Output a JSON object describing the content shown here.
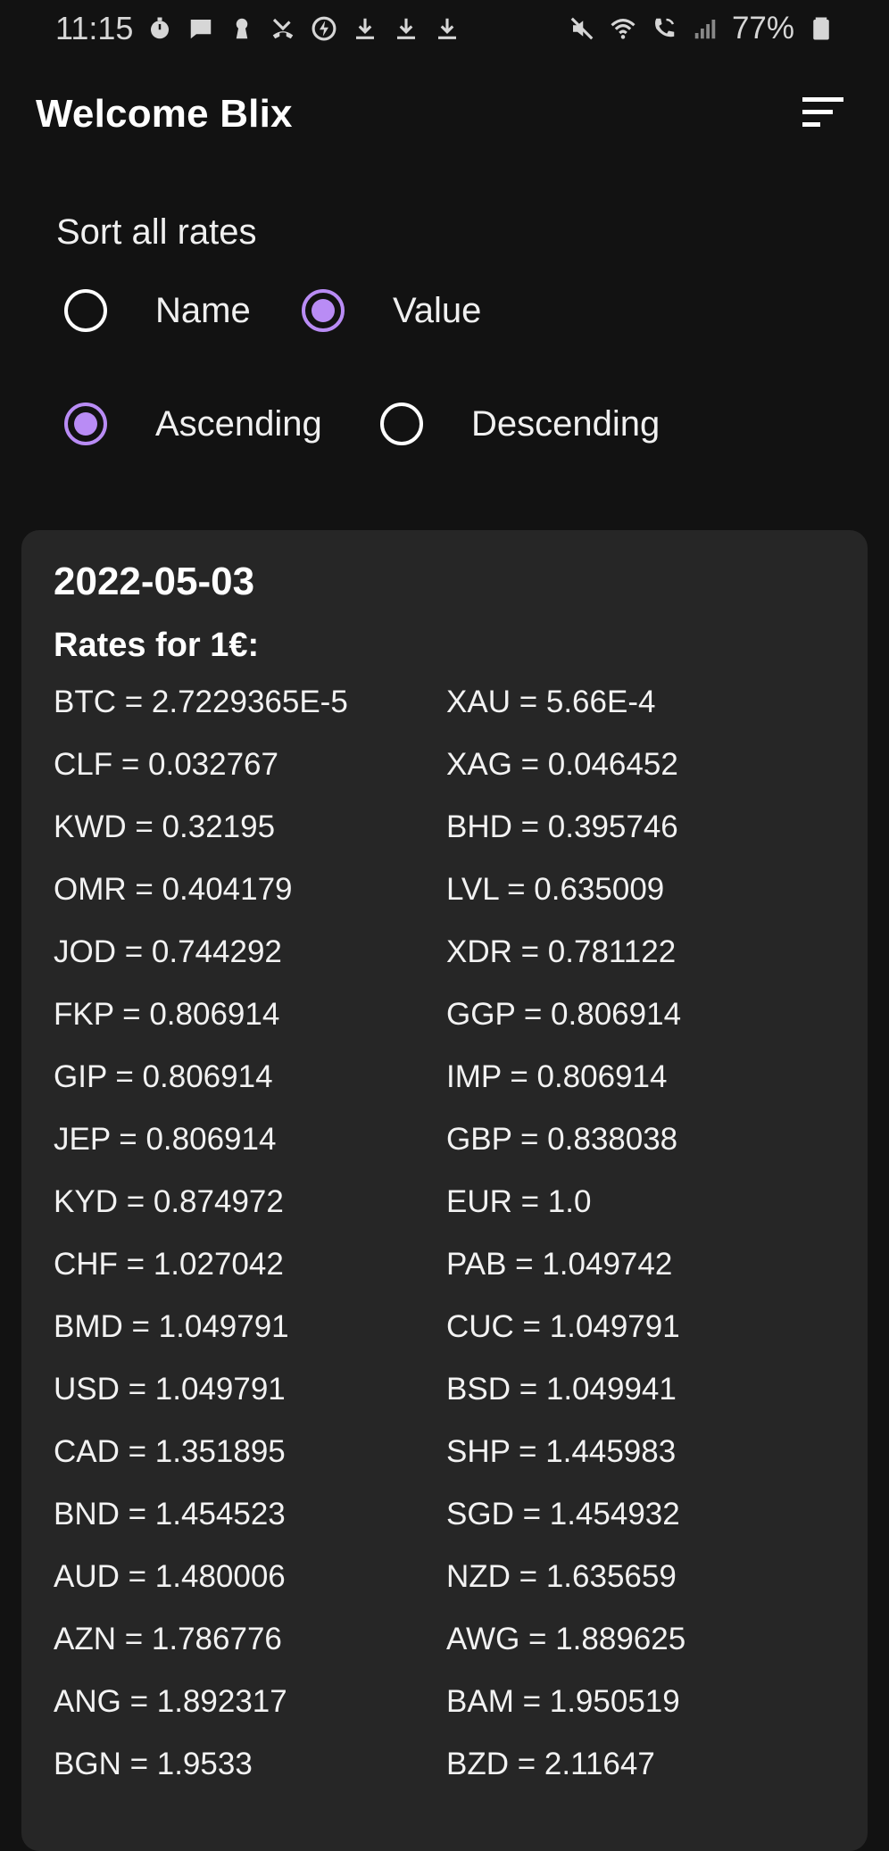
{
  "status_bar": {
    "time": "11:15",
    "battery": "77%",
    "left_icons": [
      "timer-icon",
      "message-icon",
      "keyhole-icon",
      "missed-call-icon",
      "lightning-icon",
      "download-icon",
      "download-icon",
      "download-icon"
    ],
    "right_icons": [
      "mute-icon",
      "wifi-call-icon",
      "wifi-calling-icon",
      "signal-icon",
      "battery-icon"
    ]
  },
  "app_bar": {
    "title": "Welcome Blix",
    "sort_icon": "sort-icon"
  },
  "sort": {
    "label": "Sort all rates",
    "by_options": [
      {
        "label": "Name",
        "selected": false
      },
      {
        "label": "Value",
        "selected": true
      }
    ],
    "order_options": [
      {
        "label": "Ascending",
        "selected": true
      },
      {
        "label": "Descending",
        "selected": false
      }
    ]
  },
  "card": {
    "date": "2022-05-03",
    "subtitle": "Rates for 1€:",
    "rates": [
      [
        "BTC = 2.7229365E-5",
        "XAU = 5.66E-4"
      ],
      [
        "CLF = 0.032767",
        "XAG = 0.046452"
      ],
      [
        "KWD = 0.32195",
        "BHD = 0.395746"
      ],
      [
        "OMR = 0.404179",
        "LVL = 0.635009"
      ],
      [
        "JOD = 0.744292",
        "XDR = 0.781122"
      ],
      [
        "FKP = 0.806914",
        "GGP = 0.806914"
      ],
      [
        "GIP = 0.806914",
        "IMP = 0.806914"
      ],
      [
        "JEP = 0.806914",
        "GBP = 0.838038"
      ],
      [
        "KYD = 0.874972",
        "EUR = 1.0"
      ],
      [
        "CHF = 1.027042",
        "PAB = 1.049742"
      ],
      [
        "BMD = 1.049791",
        "CUC = 1.049791"
      ],
      [
        "USD = 1.049791",
        "BSD = 1.049941"
      ],
      [
        "CAD = 1.351895",
        "SHP = 1.445983"
      ],
      [
        "BND = 1.454523",
        "SGD = 1.454932"
      ],
      [
        "AUD = 1.480006",
        "NZD = 1.635659"
      ],
      [
        "AZN = 1.786776",
        "AWG = 1.889625"
      ],
      [
        "ANG = 1.892317",
        "BAM = 1.950519"
      ],
      [
        "BGN = 1.9533",
        "BZD = 2.11647"
      ]
    ]
  },
  "colors": {
    "background": "#121212",
    "card": "#262626",
    "accent": "#b98cf5",
    "text": "#ffffff"
  }
}
